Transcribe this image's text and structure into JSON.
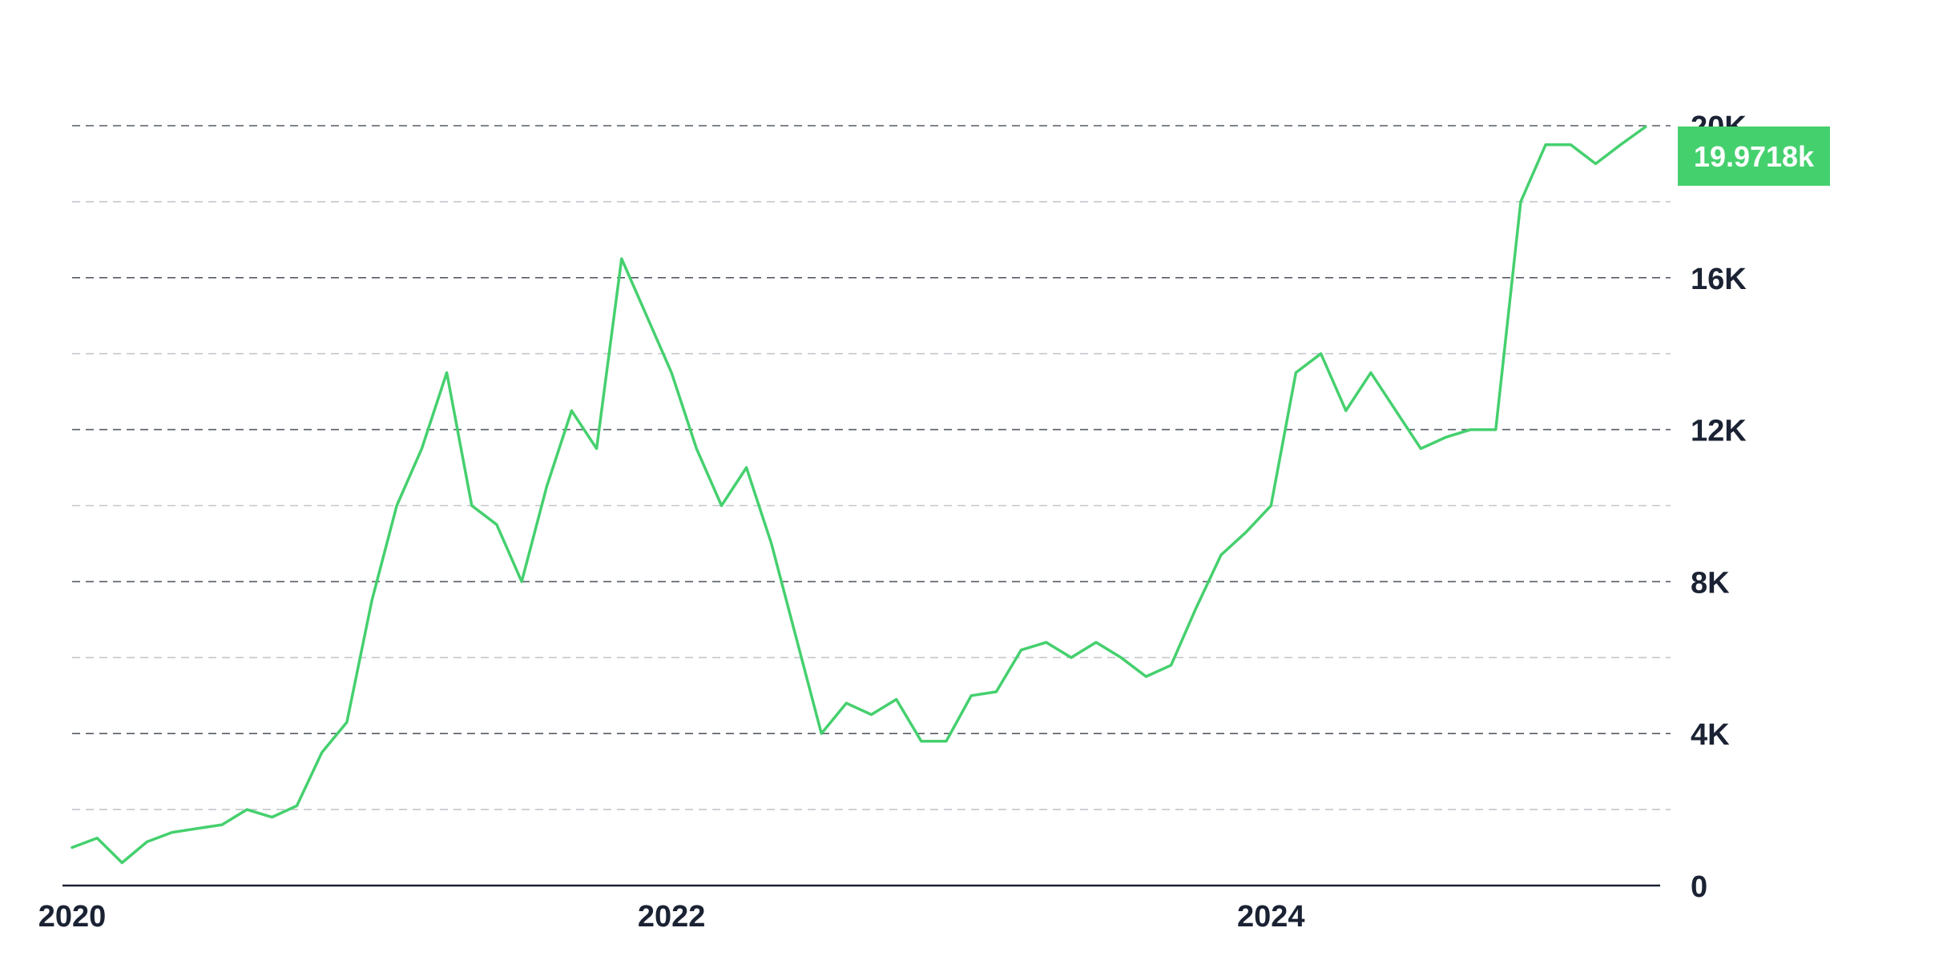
{
  "chart_data": {
    "type": "line",
    "title": "",
    "xlabel": "",
    "ylabel": "",
    "xlim": [
      "2020-01",
      "2025-05"
    ],
    "ylim": [
      0,
      20000
    ],
    "grid": "horizontal dashed",
    "y_ticks": [
      {
        "value": 0,
        "label": "0"
      },
      {
        "value": 4000,
        "label": "4K"
      },
      {
        "value": 8000,
        "label": "8K"
      },
      {
        "value": 12000,
        "label": "12K"
      },
      {
        "value": 16000,
        "label": "16K"
      },
      {
        "value": 20000,
        "label": "20K"
      }
    ],
    "y_minor_gridlines": [
      2000,
      6000,
      10000,
      14000,
      18000
    ],
    "x_ticks": [
      {
        "value": "2020-01",
        "label": "2020"
      },
      {
        "value": "2022-01",
        "label": "2022"
      },
      {
        "value": "2024-01",
        "label": "2024"
      }
    ],
    "last_value_label": "19.9718k",
    "series": [
      {
        "color": "#45d06e",
        "x": [
          "2020-01",
          "2020-02",
          "2020-03",
          "2020-04",
          "2020-05",
          "2020-06",
          "2020-07",
          "2020-08",
          "2020-09",
          "2020-10",
          "2020-11",
          "2020-12",
          "2021-01",
          "2021-02",
          "2021-03",
          "2021-04",
          "2021-05",
          "2021-06",
          "2021-07",
          "2021-08",
          "2021-09",
          "2021-10",
          "2021-11",
          "2021-12",
          "2022-01",
          "2022-02",
          "2022-03",
          "2022-04",
          "2022-05",
          "2022-06",
          "2022-07",
          "2022-08",
          "2022-09",
          "2022-10",
          "2022-11",
          "2022-12",
          "2023-01",
          "2023-02",
          "2023-03",
          "2023-04",
          "2023-05",
          "2023-06",
          "2023-07",
          "2023-08",
          "2023-09",
          "2023-10",
          "2023-11",
          "2023-12",
          "2024-01",
          "2024-02",
          "2024-03",
          "2024-04",
          "2024-05",
          "2024-06",
          "2024-07",
          "2024-08",
          "2024-09",
          "2024-10",
          "2024-11",
          "2024-12",
          "2025-01",
          "2025-02",
          "2025-03",
          "2025-04"
        ],
        "values": [
          1000,
          1250,
          600,
          1150,
          1400,
          1500,
          1600,
          2000,
          1800,
          2100,
          3500,
          4300,
          7500,
          10000,
          11500,
          13500,
          10000,
          9500,
          8000,
          10500,
          12500,
          11500,
          16500,
          15000,
          13500,
          11500,
          10000,
          11000,
          9000,
          6500,
          4000,
          4800,
          4500,
          4900,
          3800,
          3800,
          5000,
          5100,
          6200,
          6400,
          6000,
          6400,
          6000,
          5500,
          5800,
          7300,
          8700,
          9300,
          10000,
          13500,
          14000,
          12500,
          13500,
          12500,
          11500,
          11800,
          12000,
          12000,
          18000,
          19500,
          19500,
          19000,
          19500,
          19972
        ]
      }
    ]
  }
}
